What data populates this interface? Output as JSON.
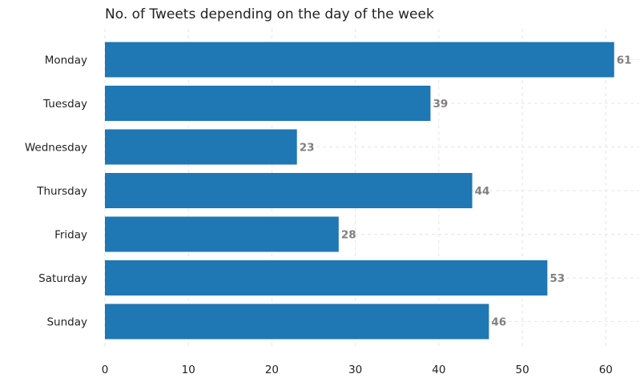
{
  "chart_data": {
    "type": "bar",
    "orientation": "horizontal",
    "title": "No. of Tweets depending on the day of the week",
    "xlabel": "",
    "ylabel": "",
    "categories": [
      "Monday",
      "Tuesday",
      "Wednesday",
      "Thursday",
      "Friday",
      "Saturday",
      "Sunday"
    ],
    "values": [
      61,
      39,
      23,
      44,
      28,
      53,
      46
    ],
    "xlim": [
      0,
      64
    ],
    "x_ticks": [
      0,
      10,
      20,
      30,
      40,
      50,
      60
    ],
    "grid": true,
    "grid_style": "dashed",
    "data_labels": true,
    "colors": {
      "bar": "#1f77b4",
      "value_label": "#808080",
      "grid": "#e6e6e6"
    }
  }
}
